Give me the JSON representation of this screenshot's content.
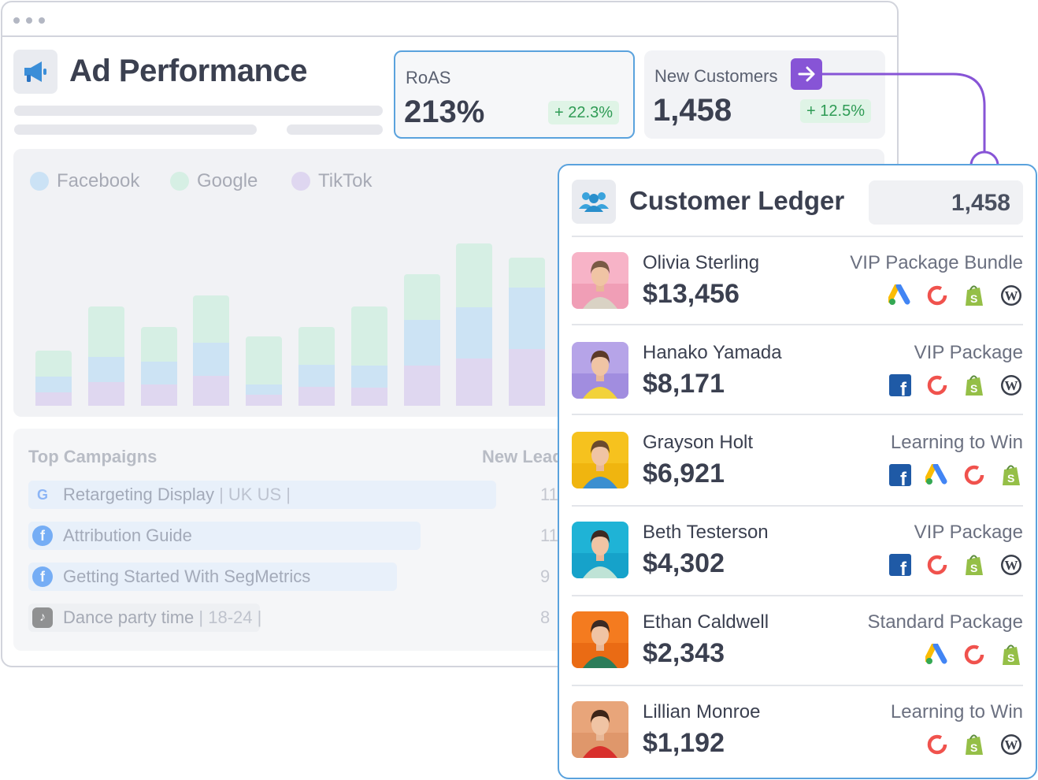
{
  "dashboard": {
    "title": "Ad Performance",
    "kpis": [
      {
        "label": "RoAS",
        "value": "213%",
        "change": "+ 22.3%"
      },
      {
        "label": "New Customers",
        "value": "1,458",
        "change": "+ 12.5%"
      }
    ],
    "legend": [
      "Facebook",
      "Google",
      "TikTok"
    ],
    "colors": {
      "facebook": "#9fd0f5",
      "google": "#b6ecd0",
      "tiktok": "#c9b6ec",
      "accent": "#8754d6",
      "border_active": "#5aa2dd"
    },
    "campaigns_header": {
      "name": "Top Campaigns",
      "leads": "New Lead"
    },
    "campaigns": [
      {
        "icon": "google-icon",
        "name": "Retargeting Display",
        "tags": "| UK US |",
        "leads": "11"
      },
      {
        "icon": "facebook-icon",
        "name": "Attribution Guide",
        "tags": "",
        "leads": "11"
      },
      {
        "icon": "facebook-icon",
        "name": "Getting Started With SegMetrics",
        "tags": "",
        "leads": "9"
      },
      {
        "icon": "tiktok-icon",
        "name": "Dance party time",
        "tags": "| 18-24 |",
        "leads": "8"
      }
    ]
  },
  "ledger": {
    "title": "Customer Ledger",
    "count": "1,458",
    "customers": [
      {
        "name": "Olivia Sterling",
        "amount": "$13,456",
        "package": "VIP Package Bundle",
        "icons": [
          "google-ads-icon",
          "hubspot-icon",
          "shopify-icon",
          "wordpress-icon"
        ]
      },
      {
        "name": "Hanako Yamada",
        "amount": "$8,171",
        "package": "VIP Package",
        "icons": [
          "facebook-icon",
          "hubspot-icon",
          "shopify-icon",
          "wordpress-icon"
        ]
      },
      {
        "name": "Grayson Holt",
        "amount": "$6,921",
        "package": "Learning to Win",
        "icons": [
          "facebook-icon",
          "google-ads-icon",
          "hubspot-icon",
          "shopify-icon"
        ]
      },
      {
        "name": "Beth Testerson",
        "amount": "$4,302",
        "package": "VIP Package",
        "icons": [
          "facebook-icon",
          "hubspot-icon",
          "shopify-icon",
          "wordpress-icon"
        ]
      },
      {
        "name": "Ethan Caldwell",
        "amount": "$2,343",
        "package": "Standard Package",
        "icons": [
          "google-ads-icon",
          "hubspot-icon",
          "shopify-icon"
        ]
      },
      {
        "name": "Lillian Monroe",
        "amount": "$1,192",
        "package": "Learning to Win",
        "icons": [
          "hubspot-icon",
          "shopify-icon",
          "wordpress-icon"
        ]
      }
    ]
  }
}
